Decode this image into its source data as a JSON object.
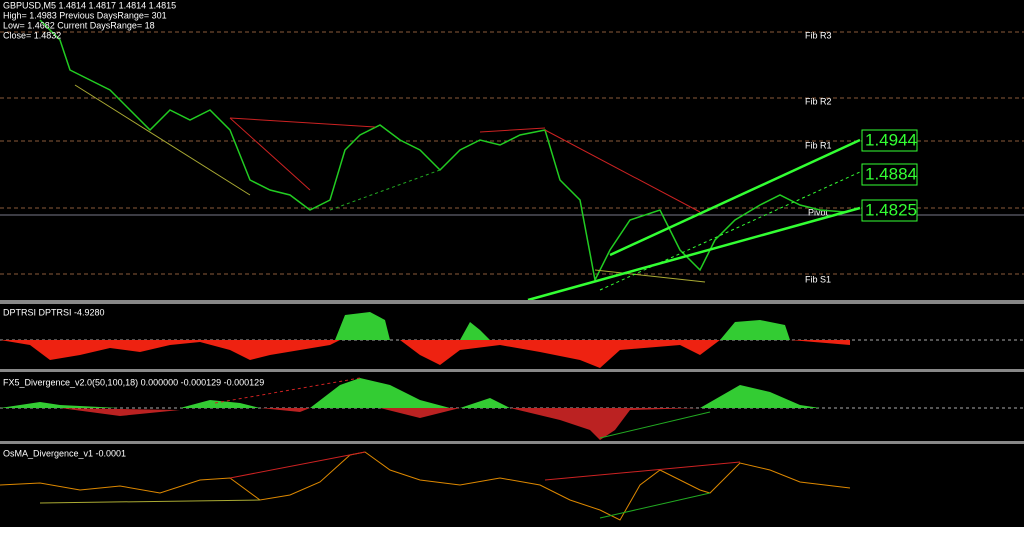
{
  "header": {
    "lines": [
      "GBPUSD,M5  1.4814 1.4817 1.4814 1.4815",
      "High= 1.4983 Previous DaysRange= 301",
      "Low= 1.4682 Current DaysRange= 18",
      "Close= 1.4832"
    ]
  },
  "levels": {
    "r3": "Fib R3",
    "r2": "Fib R2",
    "r1": "Fib R1",
    "pivot": "Pivot",
    "s1": "Fib S1"
  },
  "price_labels": {
    "upper": "1.4944",
    "middle": "1.4884",
    "lower": "1.4825"
  },
  "panes": {
    "dptrsi": "DPTRSI  DPTRSI -4.9280",
    "fx5": "FX5_Divergence_v2.0(50,100,18) 0.000000 -0.000129 -0.000129",
    "osma": "OsMA_Divergence_v1 -0.0001"
  }
}
